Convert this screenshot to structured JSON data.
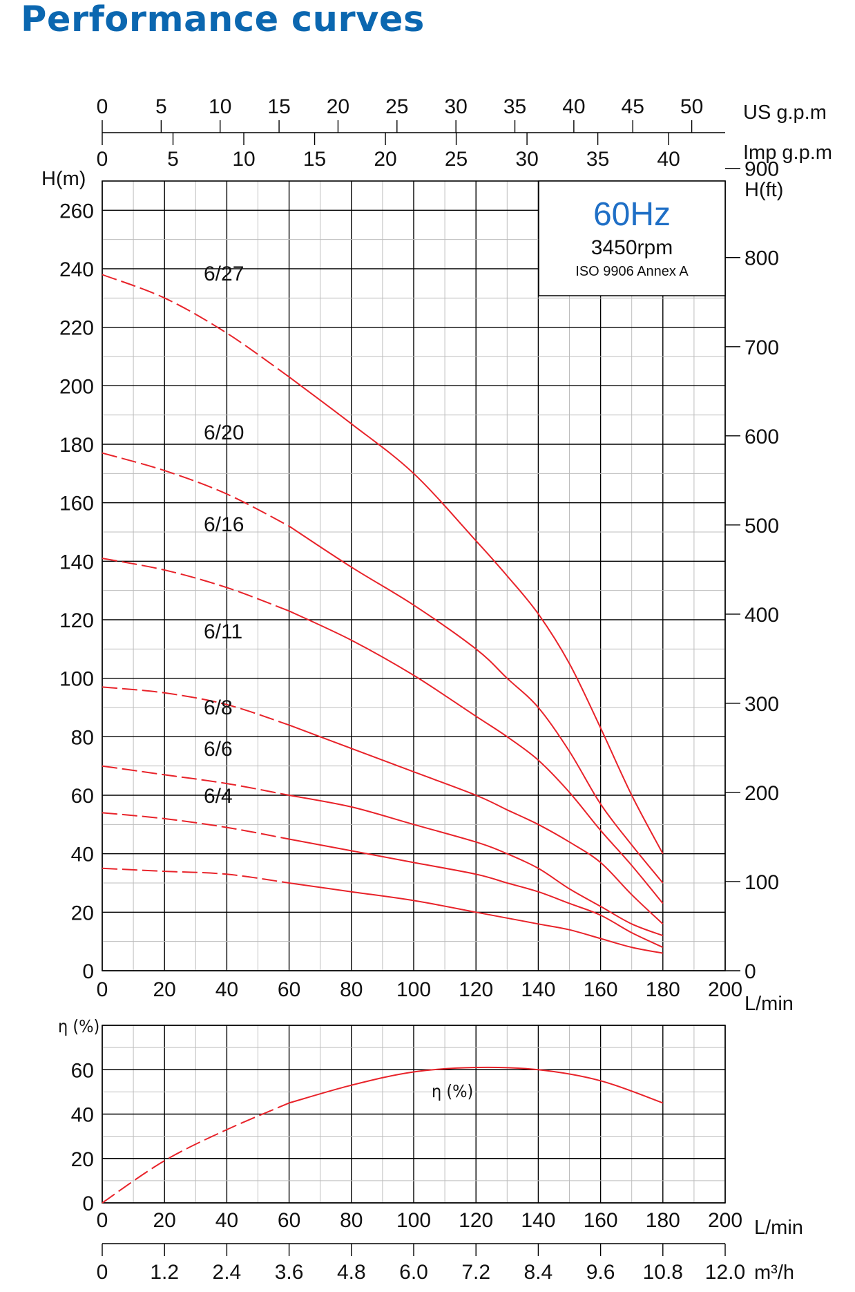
{
  "title": "Performance curves",
  "colors": {
    "title": "#0b67b0",
    "hz": "#1f6fc6",
    "curve": "#e8232a",
    "grid_major": "#000000",
    "grid_minor": "#bdbdbd"
  },
  "chart_data": [
    {
      "type": "line",
      "units_left": "H(m)",
      "units_right": "H(ft)",
      "units_x": "L/min",
      "units_top1": "US g.p.m",
      "units_top2": "Imp g.p.m",
      "xlim": [
        0,
        200
      ],
      "ylim": [
        0,
        270
      ],
      "x_ticks": [
        "0",
        "20",
        "40",
        "60",
        "80",
        "100",
        "120",
        "140",
        "160",
        "180",
        "200"
      ],
      "y_ticks": [
        "0",
        "20",
        "40",
        "60",
        "80",
        "100",
        "120",
        "140",
        "160",
        "180",
        "200",
        "220",
        "240",
        "260"
      ],
      "ft_ticks": [
        "0",
        "100",
        "200",
        "300",
        "400",
        "500",
        "600",
        "700",
        "800",
        "900"
      ],
      "usgpm_ticks": [
        "0",
        "5",
        "10",
        "15",
        "20",
        "25",
        "30",
        "35",
        "40",
        "45",
        "50"
      ],
      "impgpm_ticks": [
        "0",
        "5",
        "10",
        "15",
        "20",
        "25",
        "30",
        "35",
        "40"
      ],
      "info": {
        "hz": "60Hz",
        "rpm": "3450rpm",
        "standard": "ISO 9906 Annex A"
      },
      "series": [
        {
          "name": "6/27",
          "dashed_until": 60,
          "x": [
            0,
            20,
            40,
            60,
            80,
            100,
            120,
            130,
            140,
            150,
            160,
            170,
            180
          ],
          "y": [
            238,
            230,
            218,
            203,
            187,
            170,
            147,
            135,
            122,
            105,
            83,
            60,
            40
          ]
        },
        {
          "name": "6/20",
          "dashed_until": 60,
          "x": [
            0,
            20,
            40,
            60,
            80,
            100,
            120,
            130,
            140,
            150,
            160,
            170,
            180
          ],
          "y": [
            177,
            171,
            163,
            152,
            138,
            125,
            110,
            100,
            90,
            75,
            57,
            43,
            30
          ]
        },
        {
          "name": "6/16",
          "dashed_until": 60,
          "x": [
            0,
            20,
            40,
            60,
            80,
            100,
            120,
            130,
            140,
            150,
            160,
            170,
            180
          ],
          "y": [
            141,
            137,
            131,
            123,
            113,
            101,
            87,
            80,
            72,
            61,
            48,
            36,
            23
          ]
        },
        {
          "name": "6/11",
          "dashed_until": 60,
          "x": [
            0,
            20,
            40,
            60,
            80,
            100,
            120,
            130,
            140,
            150,
            160,
            170,
            180
          ],
          "y": [
            97,
            95,
            91,
            84,
            76,
            68,
            60,
            55,
            50,
            44,
            37,
            26,
            16
          ]
        },
        {
          "name": "6/8",
          "dashed_until": 60,
          "x": [
            0,
            20,
            40,
            60,
            80,
            100,
            120,
            130,
            140,
            150,
            160,
            170,
            180
          ],
          "y": [
            70,
            67,
            64,
            60,
            56,
            50,
            44,
            40,
            35,
            28,
            22,
            16,
            12
          ]
        },
        {
          "name": "6/6",
          "dashed_until": 60,
          "x": [
            0,
            20,
            40,
            60,
            80,
            100,
            120,
            130,
            140,
            150,
            160,
            170,
            180
          ],
          "y": [
            54,
            52,
            49,
            45,
            41,
            37,
            33,
            30,
            27,
            23,
            19,
            13,
            8
          ]
        },
        {
          "name": "6/4",
          "dashed_until": 60,
          "x": [
            0,
            20,
            40,
            60,
            80,
            100,
            120,
            130,
            140,
            150,
            160,
            170,
            180
          ],
          "y": [
            35,
            34,
            33,
            30,
            27,
            24,
            20,
            18,
            16,
            14,
            11,
            8,
            6
          ]
        }
      ]
    },
    {
      "type": "line",
      "units_left": "η (%)",
      "units_x": "L/min",
      "units_bottom": "m³/h",
      "xlim": [
        0,
        200
      ],
      "ylim": [
        0,
        80
      ],
      "x_ticks": [
        "0",
        "20",
        "40",
        "60",
        "80",
        "100",
        "120",
        "140",
        "160",
        "180",
        "200"
      ],
      "y_ticks": [
        "0",
        "20",
        "40",
        "60"
      ],
      "m3h_ticks": [
        "0",
        "1.2",
        "2.4",
        "3.6",
        "4.8",
        "6.0",
        "7.2",
        "8.4",
        "9.6",
        "10.8",
        "12.0"
      ],
      "series": [
        {
          "name": "η (%)",
          "dashed_until": 60,
          "x": [
            0,
            20,
            40,
            60,
            80,
            100,
            120,
            140,
            160,
            180
          ],
          "y": [
            0,
            19,
            33,
            45,
            53,
            59,
            61,
            60,
            55,
            45
          ]
        }
      ]
    }
  ]
}
